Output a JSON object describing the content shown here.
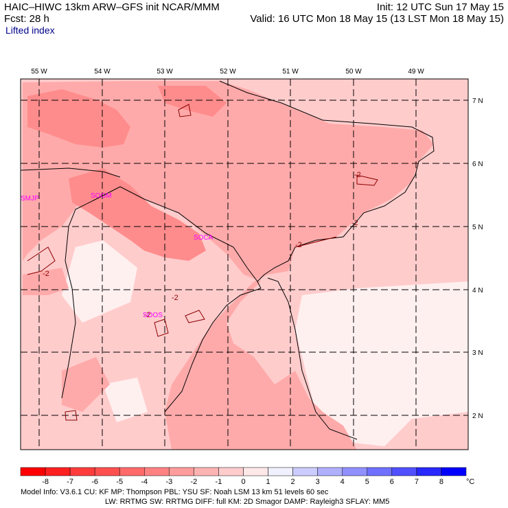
{
  "header": {
    "line1_left": "HAIC–HIWC 13km ARW–GFS init   NCAR/MMM",
    "line1_right": "Init: 12 UTC Sun 17 May 15",
    "line2_left": "Fcst:   28 h",
    "line2_right": "Valid: 16 UTC Mon 18 May 15 (13 LST Mon 18 May 15)",
    "field_name": "Lifted index"
  },
  "map": {
    "lon_labels": [
      "55 W",
      "54 W",
      "53 W",
      "52 W",
      "51 W",
      "50 W",
      "49 W"
    ],
    "lat_labels": [
      "7 N",
      "6 N",
      "5 N",
      "4 N",
      "3 N",
      "2 N"
    ],
    "stations": [
      "SMJP",
      "SOGM",
      "SOCA",
      "SOOS"
    ],
    "contour_labels": [
      "-2",
      "-2",
      "-2",
      "-2",
      "-2",
      "-2"
    ],
    "colors": {
      "very_light": "#fff0f0",
      "light": "#ffcccc",
      "medium": "#ffaaaa",
      "dark": "#ff8c8c",
      "station": "#ff00ff",
      "contour": "#8b0000"
    }
  },
  "colorbar": {
    "tick_labels": [
      "-8",
      "-7",
      "-6",
      "-5",
      "-4",
      "-3",
      "-2",
      "-1",
      "0",
      "1",
      "2",
      "3",
      "4",
      "5",
      "6",
      "7",
      "8"
    ],
    "unit": "°C",
    "colors": [
      "#ff0000",
      "#ff2020",
      "#ff3c3c",
      "#ff5050",
      "#ff6a6a",
      "#ff8282",
      "#ff9c9c",
      "#ffb4b4",
      "#ffcccc",
      "#ffe8e8",
      "#f0f0ff",
      "#ccccff",
      "#b0b0ff",
      "#9090ff",
      "#7070ff",
      "#5050ff",
      "#2828ff",
      "#0000ff"
    ]
  },
  "footer": {
    "line1": "Model Info: V3.6.1    CU: KF      MP: Thompson    PBL: YSU      SF: Noah LSM      13 km    51 levels   60 sec",
    "line2": "LW: RRTMG    SW: RRTMG   DIFF: full    KM: 2D Smagor DAMP: Rayleigh3   SFLAY: MM5"
  }
}
